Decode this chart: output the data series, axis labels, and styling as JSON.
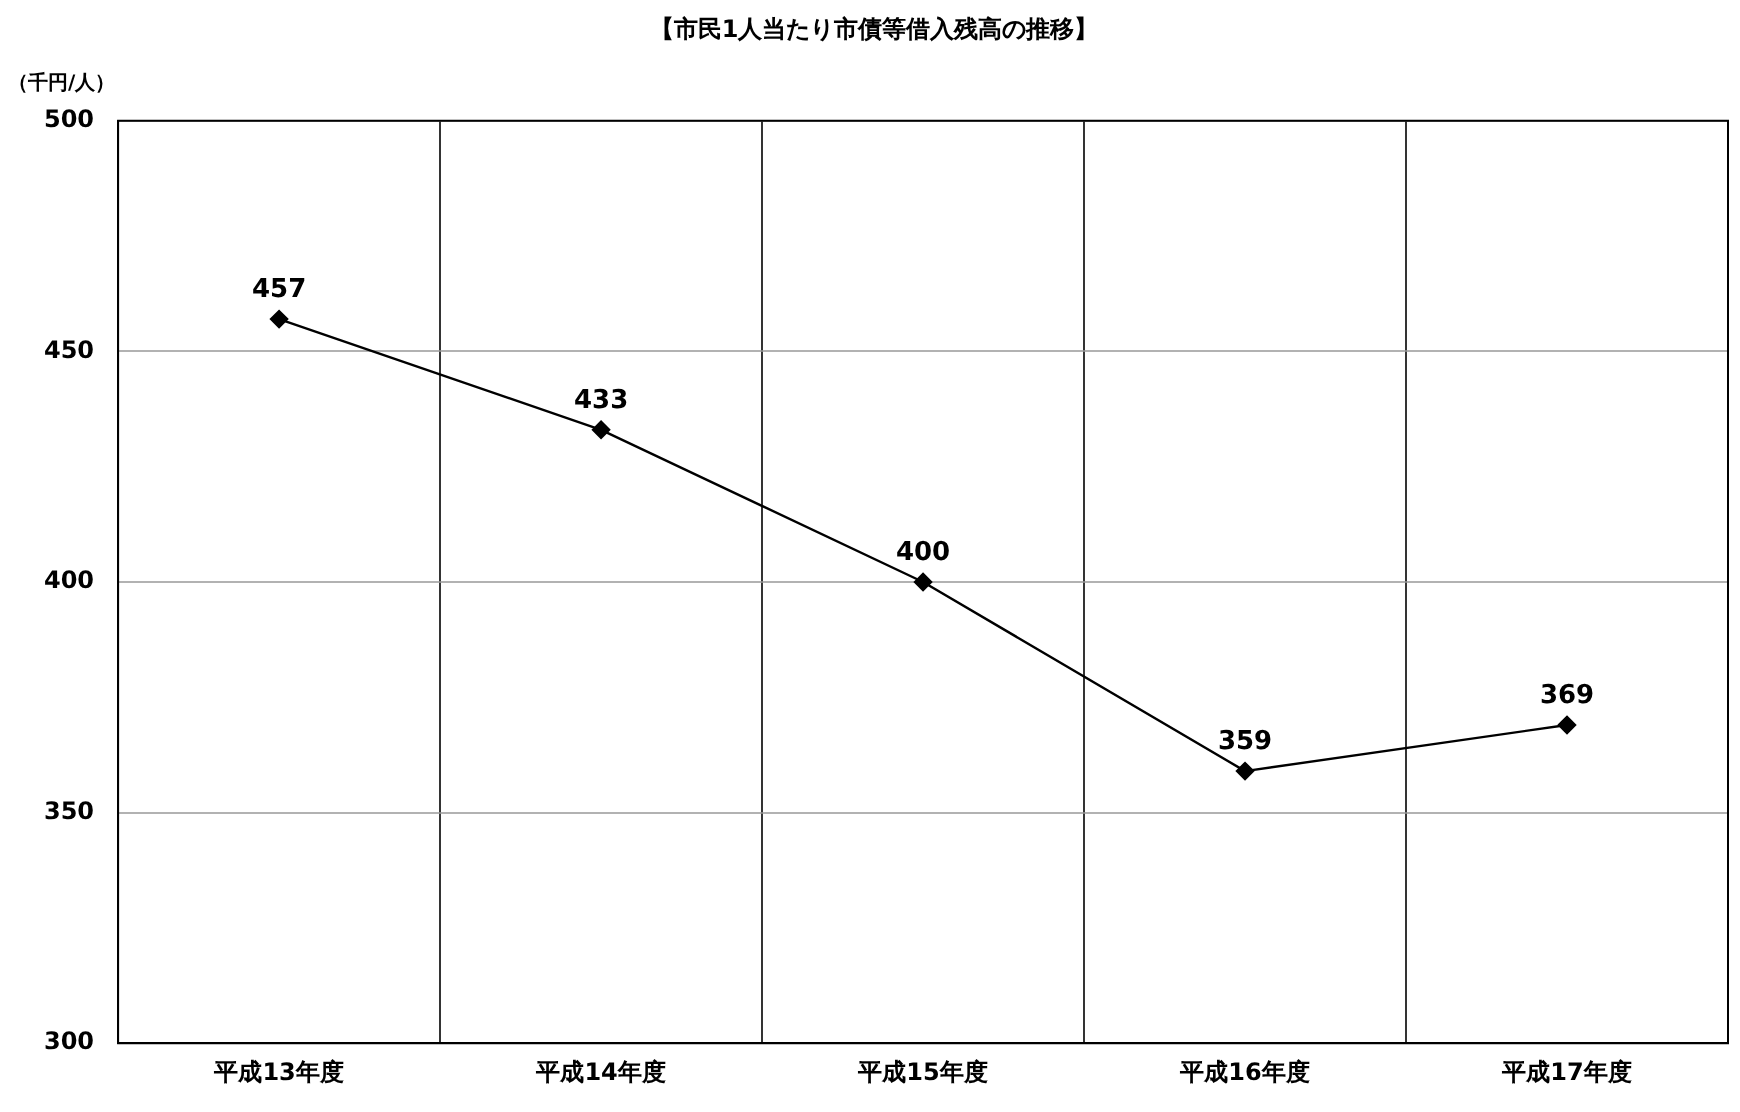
{
  "chart_data": {
    "type": "line",
    "title": "【市民1人当たり市債等借入残高の推移】",
    "ylabel": "（千円/人）",
    "categories": [
      "平成13年度",
      "平成14年度",
      "平成15年度",
      "平成16年度",
      "平成17年度"
    ],
    "series": [
      {
        "color": "#000000",
        "values": [
          457,
          433,
          400,
          359,
          369
        ]
      }
    ],
    "ylim": [
      300,
      500
    ],
    "yticks": [
      300,
      350,
      400,
      450,
      500
    ],
    "grid": true,
    "marker": "diamond",
    "line_style": "solid",
    "data_labels": true,
    "legend": false
  }
}
